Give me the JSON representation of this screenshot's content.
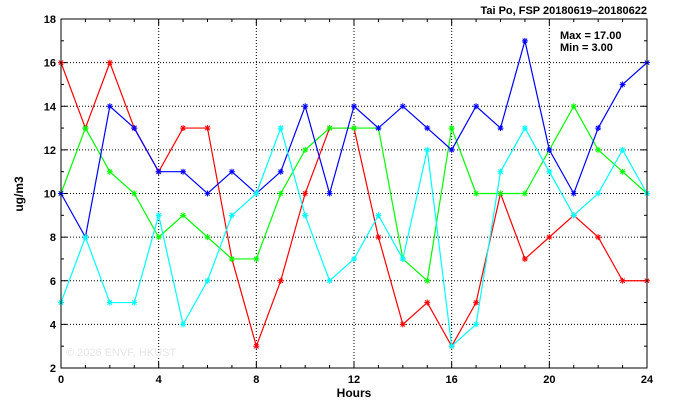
{
  "chart_data": {
    "type": "line",
    "title": "Tai Po, FSP 20180619–20180622",
    "xlabel": "Hours",
    "ylabel": "ug/m3",
    "xlim": [
      0,
      24
    ],
    "ylim": [
      2,
      18
    ],
    "x_ticks": [
      "0",
      "4",
      "8",
      "12",
      "16",
      "20",
      "24"
    ],
    "y_ticks": [
      "2",
      "4",
      "6",
      "8",
      "10",
      "12",
      "14",
      "16",
      "18"
    ],
    "grid": true,
    "stats": {
      "max_label": "Max = 17.00",
      "min_label": "Min =  3.00"
    },
    "watermark": "© 2026  ENVF, HKUST",
    "x": [
      0,
      1,
      2,
      3,
      4,
      5,
      6,
      7,
      8,
      9,
      10,
      11,
      12,
      13,
      14,
      15,
      16,
      17,
      18,
      19,
      20,
      21,
      22,
      23,
      24
    ],
    "series": [
      {
        "color": "#ff0000",
        "values": [
          16,
          13,
          16,
          13,
          11,
          13,
          13,
          7,
          3,
          6,
          10,
          13,
          13,
          8,
          4,
          5,
          3,
          5,
          10,
          7,
          8,
          9,
          8,
          6,
          6
        ]
      },
      {
        "color": "#00ff00",
        "values": [
          10,
          13,
          11,
          10,
          8,
          9,
          8,
          7,
          7,
          10,
          12,
          13,
          13,
          13,
          7,
          6,
          13,
          10,
          10,
          10,
          12,
          14,
          12,
          11,
          10
        ]
      },
      {
        "color": "#0000ff",
        "values": [
          10,
          8,
          14,
          13,
          11,
          11,
          10,
          11,
          10,
          11,
          14,
          10,
          14,
          13,
          14,
          13,
          12,
          14,
          13,
          17,
          12,
          10,
          13,
          15,
          16
        ]
      },
      {
        "color": "#00ffff",
        "values": [
          5,
          8,
          5,
          5,
          9,
          4,
          6,
          9,
          10,
          13,
          9,
          6,
          7,
          9,
          7,
          12,
          3,
          4,
          11,
          13,
          11,
          9,
          10,
          12,
          10
        ]
      }
    ]
  }
}
